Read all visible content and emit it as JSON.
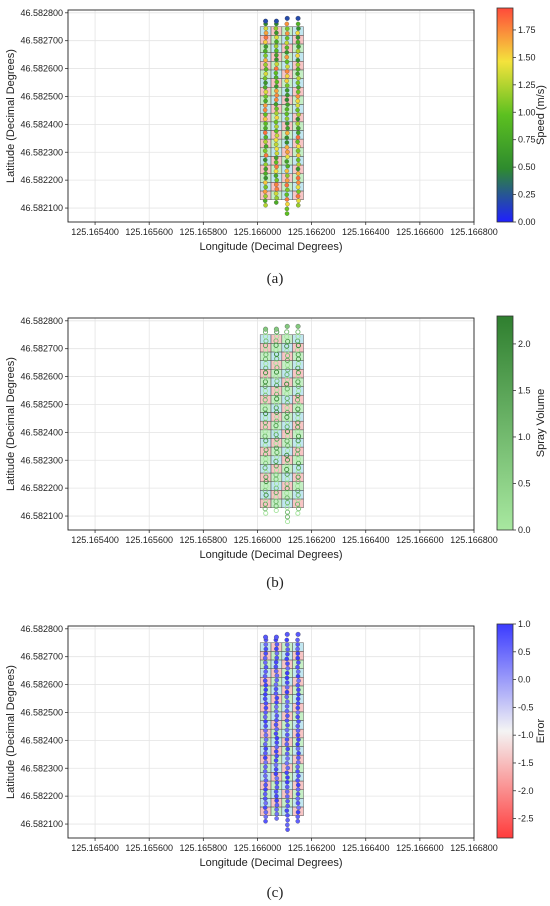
{
  "figure": {
    "panels": [
      {
        "caption": "(a)",
        "colorbar": {
          "label": "Speed (m/s)",
          "ticks": [
            "0.00",
            "0.25",
            "0.50",
            "0.75",
            "1.00",
            "1.25",
            "1.50",
            "1.75"
          ],
          "range": [
            0,
            1.95
          ],
          "colors": [
            "#1f1fff",
            "#2e8b2e",
            "#5cc020",
            "#f4e33c",
            "#ff4a3a"
          ]
        }
      },
      {
        "caption": "(b)",
        "colorbar": {
          "label": "Spray Volume",
          "ticks": [
            "0.0",
            "0.5",
            "1.0",
            "1.5",
            "2.0"
          ],
          "range": [
            0,
            2.3
          ],
          "colors": [
            "#a8e8a0",
            "#2f7f2f"
          ]
        }
      },
      {
        "caption": "(c)",
        "colorbar": {
          "label": "Error",
          "ticks": [
            "1.0",
            "0.5",
            "0.0",
            "-0.5",
            "-1.0",
            "-1.5",
            "-2.0",
            "-2.5"
          ],
          "range": [
            -2.85,
            1.0
          ],
          "colors": [
            "#ff3b3b",
            "#f4f4f4",
            "#3b3bff"
          ]
        }
      }
    ]
  },
  "chart_data": [
    {
      "type": "scatter",
      "title": "",
      "xlabel": "Longitude (Decimal Degrees)",
      "ylabel": "Latitude (Decimal Degrees)",
      "xlim": [
        125.1653,
        125.1668
      ],
      "ylim": [
        46.58205,
        46.58281
      ],
      "xticks": [
        "125.165400",
        "125.165600",
        "125.165800",
        "125.166000",
        "125.166200",
        "125.166400",
        "125.166600",
        "125.166800"
      ],
      "yticks": [
        "46.582100",
        "46.582200",
        "46.582300",
        "46.582400",
        "46.582500",
        "46.582600",
        "46.582700",
        "46.582800"
      ],
      "grid": true,
      "grid_overlay": {
        "x_range": [
          125.16601,
          125.16617
        ],
        "y_range": [
          46.58213,
          46.58275
        ],
        "columns": 4,
        "rows": 20,
        "cell_colors": [
          "#a0d8e8",
          "#a6e6a6",
          "#f2a6a6"
        ]
      },
      "series": [
        {
          "values_colored_by": "Speed (m/s)",
          "passes_lon": [
            125.16603,
            125.16611,
            125.16615,
            125.16607
          ],
          "speed_range": [
            0,
            1.95
          ]
        }
      ]
    },
    {
      "type": "scatter",
      "title": "",
      "xlabel": "Longitude (Decimal Degrees)",
      "ylabel": "Latitude (Decimal Degrees)",
      "xlim": [
        125.1653,
        125.1668
      ],
      "ylim": [
        46.58205,
        46.58281
      ],
      "xticks": [
        "125.165400",
        "125.165600",
        "125.165800",
        "125.166000",
        "125.166200",
        "125.166400",
        "125.166600",
        "125.166800"
      ],
      "yticks": [
        "46.582100",
        "46.582200",
        "46.582300",
        "46.582400",
        "46.582500",
        "46.582600",
        "46.582700",
        "46.582800"
      ],
      "grid": true,
      "series": [
        {
          "values_colored_by": "Spray Volume",
          "passes_lon": [
            125.16603,
            125.16611,
            125.16615,
            125.16607
          ],
          "spray_range": [
            0,
            2.3
          ]
        }
      ]
    },
    {
      "type": "scatter",
      "title": "",
      "xlabel": "Longitude (Decimal Degrees)",
      "ylabel": "Latitude (Decimal Degrees)",
      "xlim": [
        125.1653,
        125.1668
      ],
      "ylim": [
        46.58205,
        46.58281
      ],
      "xticks": [
        "125.165400",
        "125.165600",
        "125.165800",
        "125.166000",
        "125.166200",
        "125.166400",
        "125.166600",
        "125.166800"
      ],
      "yticks": [
        "46.582100",
        "46.582200",
        "46.582300",
        "46.582400",
        "46.582500",
        "46.582600",
        "46.582700",
        "46.582800"
      ],
      "grid": true,
      "series": [
        {
          "values_colored_by": "Error",
          "passes_lon": [
            125.16603,
            125.16611,
            125.16615,
            125.16607
          ],
          "error_range": [
            -2.85,
            1.0
          ]
        }
      ]
    }
  ]
}
